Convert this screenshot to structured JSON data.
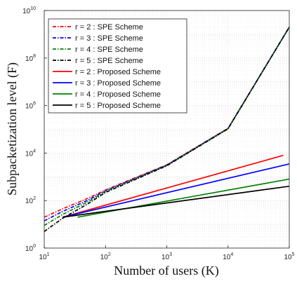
{
  "chart_data": {
    "type": "line",
    "xscale": "log",
    "yscale": "log",
    "xlabel": "Number of users (K)",
    "ylabel": "Subpacketization level (F)",
    "xlim": [
      10,
      100000
    ],
    "ylim": [
      1,
      10000000000
    ],
    "x_ticks": [
      {
        "base": "10",
        "exp": "1",
        "value": 10
      },
      {
        "base": "10",
        "exp": "2",
        "value": 100
      },
      {
        "base": "10",
        "exp": "3",
        "value": 1000
      },
      {
        "base": "10",
        "exp": "4",
        "value": 10000
      },
      {
        "base": "10",
        "exp": "5",
        "value": 100000
      }
    ],
    "y_ticks": [
      {
        "base": "10",
        "exp": "0",
        "value": 1
      },
      {
        "base": "10",
        "exp": "2",
        "value": 100
      },
      {
        "base": "10",
        "exp": "4",
        "value": 10000
      },
      {
        "base": "10",
        "exp": "6",
        "value": 1000000
      },
      {
        "base": "10",
        "exp": "8",
        "value": 100000000
      },
      {
        "base": "10",
        "exp": "10",
        "value": 10000000000
      }
    ],
    "grid": true,
    "legend_position": "top-left",
    "series": [
      {
        "name": "r = 2 : SPE Scheme",
        "color": "#ff0000",
        "style": "dashed",
        "x": [
          10,
          20,
          50,
          100,
          1000,
          10000,
          100000
        ],
        "y": [
          20,
          45,
          120,
          280,
          3200,
          110000,
          2000000000
        ]
      },
      {
        "name": "r = 3 : SPE Scheme",
        "color": "#0000ff",
        "style": "dashed",
        "x": [
          10,
          20,
          50,
          100,
          1000,
          10000,
          100000
        ],
        "y": [
          14,
          35,
          100,
          260,
          3100,
          108000,
          2000000000
        ]
      },
      {
        "name": "r = 4 : SPE Scheme",
        "color": "#008000",
        "style": "dashed",
        "x": [
          10,
          20,
          50,
          100,
          1000,
          10000,
          100000
        ],
        "y": [
          9,
          26,
          85,
          240,
          3000,
          106000,
          2000000000
        ]
      },
      {
        "name": "r = 5 : SPE Scheme",
        "color": "#000000",
        "style": "dashed",
        "x": [
          10,
          20,
          50,
          100,
          1000,
          10000,
          100000
        ],
        "y": [
          5,
          18,
          70,
          220,
          2900,
          105000,
          2000000000
        ]
      },
      {
        "name": "r = 2 : Proposed Scheme",
        "color": "#ff0000",
        "style": "solid",
        "x": [
          20,
          80000
        ],
        "y": [
          20,
          8000
        ]
      },
      {
        "name": "r = 3 : Proposed Scheme",
        "color": "#0000ff",
        "style": "solid",
        "x": [
          20,
          100000
        ],
        "y": [
          20,
          3500
        ]
      },
      {
        "name": "r = 4 : Proposed Scheme",
        "color": "#008000",
        "style": "solid",
        "x": [
          35,
          100000
        ],
        "y": [
          20,
          800
        ]
      },
      {
        "name": "r = 5 : Proposed Scheme",
        "color": "#000000",
        "style": "solid",
        "x": [
          20,
          100000
        ],
        "y": [
          20,
          400
        ]
      }
    ]
  }
}
